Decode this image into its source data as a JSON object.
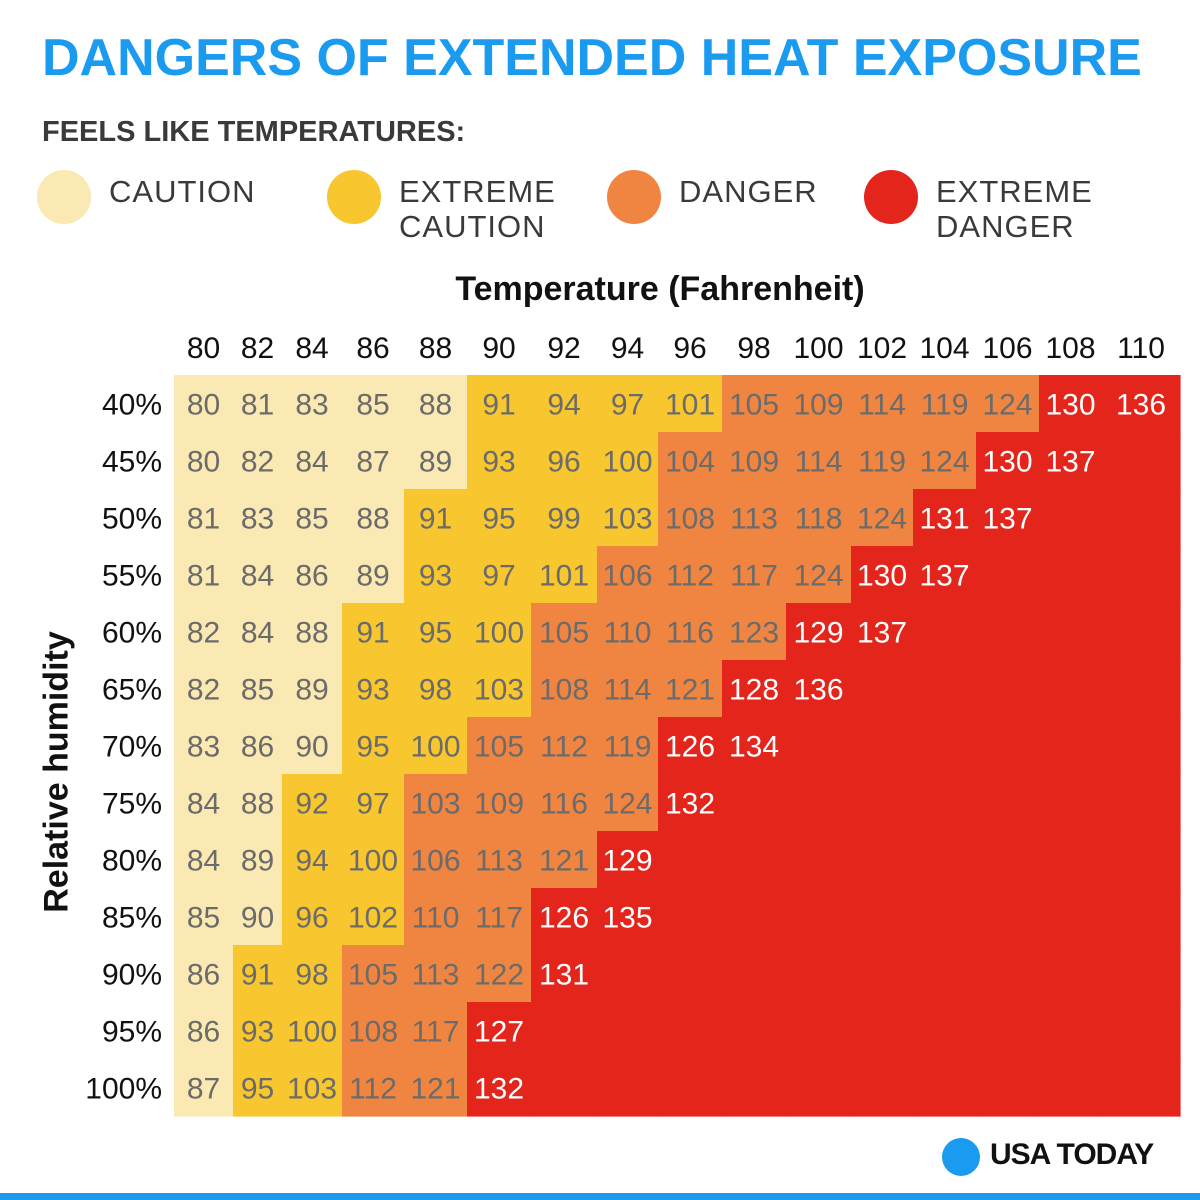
{
  "title": "DANGERS OF EXTENDED HEAT EXPOSURE",
  "subtitle": "FEELS LIKE TEMPERATURES:",
  "legend": [
    {
      "key": "caution",
      "label": "CAUTION",
      "color": "#fae9b2"
    },
    {
      "key": "extreme_caution",
      "label": "EXTREME\nCAUTION",
      "color": "#f8c62e"
    },
    {
      "key": "danger",
      "label": "DANGER",
      "color": "#ef8540"
    },
    {
      "key": "extreme_danger",
      "label": "EXTREME\nDANGER",
      "color": "#e3251c"
    }
  ],
  "brand": {
    "name": "USA TODAY",
    "color": "#1a9bf0"
  },
  "chart_data": {
    "type": "heatmap",
    "title": "DANGERS OF EXTENDED HEAT EXPOSURE",
    "xlabel": "Temperature (Fahrenheit)",
    "ylabel": "Relative humidity",
    "x": [
      80,
      82,
      84,
      86,
      88,
      90,
      92,
      94,
      96,
      98,
      100,
      102,
      104,
      106,
      108,
      110
    ],
    "y": [
      "40%",
      "45%",
      "50%",
      "55%",
      "60%",
      "65%",
      "70%",
      "75%",
      "80%",
      "85%",
      "90%",
      "95%",
      "100%"
    ],
    "values": [
      [
        80,
        81,
        83,
        85,
        88,
        91,
        94,
        97,
        101,
        105,
        109,
        114,
        119,
        124,
        130,
        136
      ],
      [
        80,
        82,
        84,
        87,
        89,
        93,
        96,
        100,
        104,
        109,
        114,
        119,
        124,
        130,
        137,
        null
      ],
      [
        81,
        83,
        85,
        88,
        91,
        95,
        99,
        103,
        108,
        113,
        118,
        124,
        131,
        137,
        null,
        null
      ],
      [
        81,
        84,
        86,
        89,
        93,
        97,
        101,
        106,
        112,
        117,
        124,
        130,
        137,
        null,
        null,
        null
      ],
      [
        82,
        84,
        88,
        91,
        95,
        100,
        105,
        110,
        116,
        123,
        129,
        137,
        null,
        null,
        null,
        null
      ],
      [
        82,
        85,
        89,
        93,
        98,
        103,
        108,
        114,
        121,
        128,
        136,
        null,
        null,
        null,
        null,
        null
      ],
      [
        83,
        86,
        90,
        95,
        100,
        105,
        112,
        119,
        126,
        134,
        null,
        null,
        null,
        null,
        null,
        null
      ],
      [
        84,
        88,
        92,
        97,
        103,
        109,
        116,
        124,
        132,
        null,
        null,
        null,
        null,
        null,
        null,
        null
      ],
      [
        84,
        89,
        94,
        100,
        106,
        113,
        121,
        129,
        null,
        null,
        null,
        null,
        null,
        null,
        null,
        null
      ],
      [
        85,
        90,
        96,
        102,
        110,
        117,
        126,
        135,
        null,
        null,
        null,
        null,
        null,
        null,
        null,
        null
      ],
      [
        86,
        91,
        98,
        105,
        113,
        122,
        131,
        null,
        null,
        null,
        null,
        null,
        null,
        null,
        null,
        null
      ],
      [
        86,
        93,
        100,
        108,
        117,
        127,
        null,
        null,
        null,
        null,
        null,
        null,
        null,
        null,
        null,
        null
      ],
      [
        87,
        95,
        103,
        112,
        121,
        132,
        null,
        null,
        null,
        null,
        null,
        null,
        null,
        null,
        null,
        null
      ]
    ],
    "categories": [
      [
        0,
        0,
        0,
        0,
        0,
        1,
        1,
        1,
        1,
        2,
        2,
        2,
        2,
        2,
        3,
        3
      ],
      [
        0,
        0,
        0,
        0,
        0,
        1,
        1,
        1,
        2,
        2,
        2,
        2,
        2,
        3,
        3,
        3
      ],
      [
        0,
        0,
        0,
        0,
        1,
        1,
        1,
        1,
        2,
        2,
        2,
        2,
        3,
        3,
        3,
        3
      ],
      [
        0,
        0,
        0,
        0,
        1,
        1,
        1,
        2,
        2,
        2,
        2,
        3,
        3,
        3,
        3,
        3
      ],
      [
        0,
        0,
        0,
        1,
        1,
        1,
        2,
        2,
        2,
        2,
        3,
        3,
        3,
        3,
        3,
        3
      ],
      [
        0,
        0,
        0,
        1,
        1,
        1,
        2,
        2,
        2,
        3,
        3,
        3,
        3,
        3,
        3,
        3
      ],
      [
        0,
        0,
        0,
        1,
        1,
        2,
        2,
        2,
        3,
        3,
        3,
        3,
        3,
        3,
        3,
        3
      ],
      [
        0,
        0,
        1,
        1,
        2,
        2,
        2,
        2,
        3,
        3,
        3,
        3,
        3,
        3,
        3,
        3
      ],
      [
        0,
        0,
        1,
        1,
        2,
        2,
        2,
        3,
        3,
        3,
        3,
        3,
        3,
        3,
        3,
        3
      ],
      [
        0,
        0,
        1,
        1,
        2,
        2,
        3,
        3,
        3,
        3,
        3,
        3,
        3,
        3,
        3,
        3
      ],
      [
        0,
        1,
        1,
        2,
        2,
        2,
        3,
        3,
        3,
        3,
        3,
        3,
        3,
        3,
        3,
        3
      ],
      [
        0,
        1,
        1,
        2,
        2,
        3,
        3,
        3,
        3,
        3,
        3,
        3,
        3,
        3,
        3,
        3
      ],
      [
        0,
        1,
        1,
        2,
        2,
        3,
        3,
        3,
        3,
        3,
        3,
        3,
        3,
        3,
        3,
        3
      ]
    ],
    "category_names": [
      "Caution",
      "Extreme caution",
      "Danger",
      "Extreme danger"
    ],
    "legend_position": "top"
  }
}
